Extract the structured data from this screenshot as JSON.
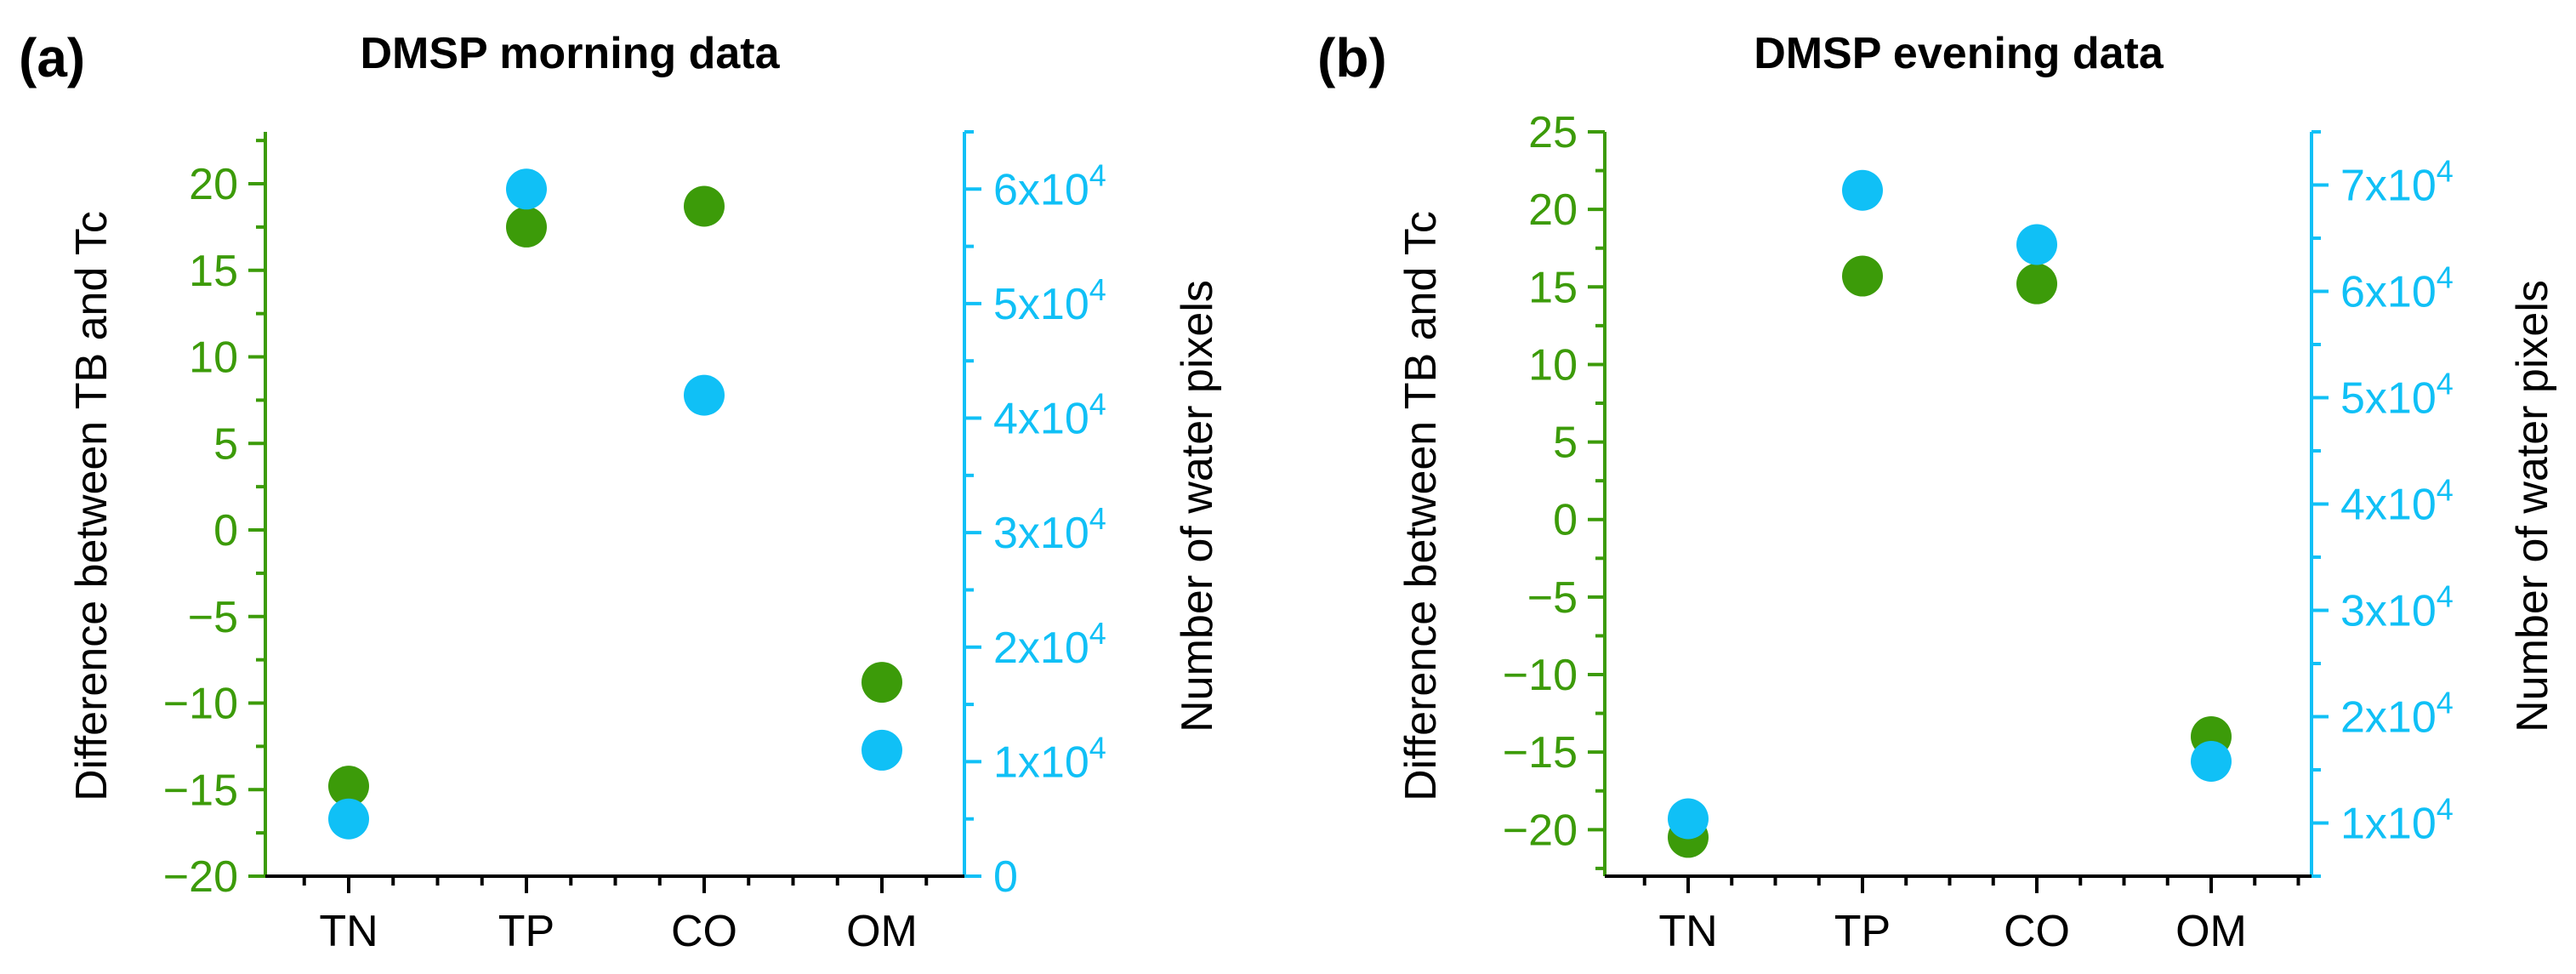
{
  "colors": {
    "left_axis": "#3c9b09",
    "right_axis": "#10c0f6",
    "green_points": "#3c9b09",
    "blue_points": "#10c0f6",
    "frame": "#000000"
  },
  "chart_data": [
    {
      "panel": "(a)",
      "type": "scatter",
      "title": "DMSP morning data",
      "categories": [
        "TN",
        "TP",
        "CO",
        "OM"
      ],
      "ylabel": "Difference between TB and Tc",
      "ylabel_right": "Number of water pixels",
      "ylim": [
        -20,
        23
      ],
      "yticks": [
        {
          "v": 20,
          "l": "20"
        },
        {
          "v": 15,
          "l": "15"
        },
        {
          "v": 10,
          "l": "10"
        },
        {
          "v": 5,
          "l": "5"
        },
        {
          "v": 0,
          "l": "0"
        },
        {
          "v": -5,
          "l": "−5"
        },
        {
          "v": -10,
          "l": "−10"
        },
        {
          "v": -15,
          "l": "−15"
        },
        {
          "v": -20,
          "l": "−20"
        }
      ],
      "ylim_right": [
        0,
        65000
      ],
      "yticks_right": [
        {
          "v": 0,
          "base": "0",
          "exp": ""
        },
        {
          "v": 10000,
          "base": "1x10",
          "exp": "4"
        },
        {
          "v": 20000,
          "base": "2x10",
          "exp": "4"
        },
        {
          "v": 30000,
          "base": "3x10",
          "exp": "4"
        },
        {
          "v": 40000,
          "base": "4x10",
          "exp": "4"
        },
        {
          "v": 50000,
          "base": "5x10",
          "exp": "4"
        },
        {
          "v": 60000,
          "base": "6x10",
          "exp": "4"
        }
      ],
      "series": [
        {
          "name": "Difference between TB and Tc",
          "axis": "left",
          "color": "#3c9b09",
          "values": [
            -14.8,
            17.5,
            18.7,
            -8.8
          ]
        },
        {
          "name": "Number of water pixels",
          "axis": "right",
          "color": "#10c0f6",
          "values": [
            5000,
            60000,
            42000,
            11000
          ]
        }
      ]
    },
    {
      "panel": "(b)",
      "type": "scatter",
      "title": "DMSP evening data",
      "categories": [
        "TN",
        "TP",
        "CO",
        "OM"
      ],
      "ylabel": "Difference between TB and Tc",
      "ylabel_right": "Number of water pixels",
      "ylim": [
        -23,
        25
      ],
      "yticks": [
        {
          "v": 25,
          "l": "25"
        },
        {
          "v": 20,
          "l": "20"
        },
        {
          "v": 15,
          "l": "15"
        },
        {
          "v": 10,
          "l": "10"
        },
        {
          "v": 5,
          "l": "5"
        },
        {
          "v": 0,
          "l": "0"
        },
        {
          "v": -5,
          "l": "−5"
        },
        {
          "v": -10,
          "l": "−10"
        },
        {
          "v": -15,
          "l": "−15"
        },
        {
          "v": -20,
          "l": "−20"
        }
      ],
      "ylim_right": [
        5000,
        75000
      ],
      "yticks_right": [
        {
          "v": 10000,
          "base": "1x10",
          "exp": "4"
        },
        {
          "v": 20000,
          "base": "2x10",
          "exp": "4"
        },
        {
          "v": 30000,
          "base": "3x10",
          "exp": "4"
        },
        {
          "v": 40000,
          "base": "4x10",
          "exp": "4"
        },
        {
          "v": 50000,
          "base": "5x10",
          "exp": "4"
        },
        {
          "v": 60000,
          "base": "6x10",
          "exp": "4"
        },
        {
          "v": 70000,
          "base": "7x10",
          "exp": "4"
        }
      ],
      "series": [
        {
          "name": "Difference between TB and Tc",
          "axis": "left",
          "color": "#3c9b09",
          "values": [
            -20.5,
            15.7,
            15.2,
            -14.0
          ]
        },
        {
          "name": "Number of water pixels",
          "axis": "right",
          "color": "#10c0f6",
          "values": [
            10400,
            69500,
            64400,
            15800
          ]
        }
      ]
    }
  ]
}
